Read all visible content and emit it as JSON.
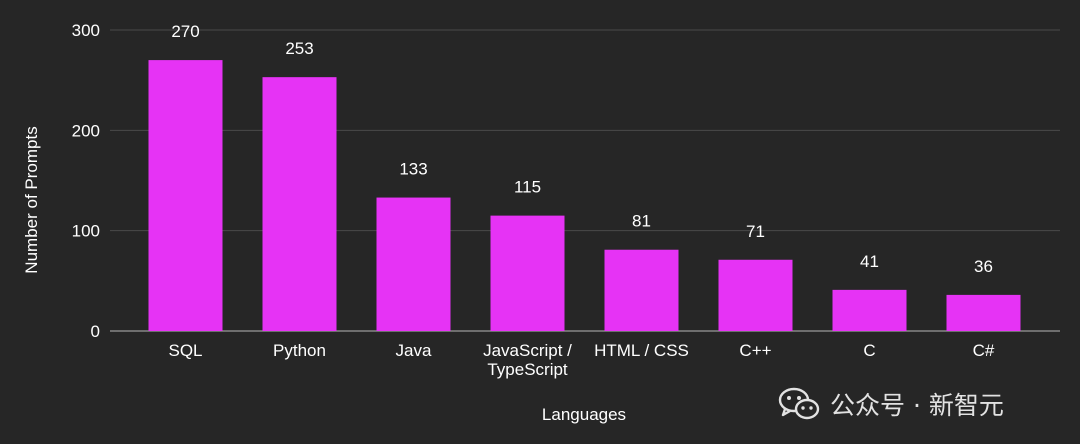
{
  "chart_data": {
    "type": "bar",
    "categories": [
      "SQL",
      "Python",
      "Java",
      "JavaScript / TypeScript",
      "HTML / CSS",
      "C++",
      "C",
      "C#"
    ],
    "category_lines": [
      [
        "SQL"
      ],
      [
        "Python"
      ],
      [
        "Java"
      ],
      [
        "JavaScript /",
        "TypeScript"
      ],
      [
        "HTML / CSS"
      ],
      [
        "C++"
      ],
      [
        "C"
      ],
      [
        "C#"
      ]
    ],
    "values": [
      270,
      253,
      133,
      115,
      81,
      71,
      41,
      36
    ],
    "data_labels": [
      "270",
      "253",
      "133",
      "115",
      "81",
      "71",
      "41",
      "36"
    ],
    "xlabel": "Languages",
    "ylabel": "Number of Prompts",
    "ylim": [
      0,
      300
    ],
    "yticks": [
      0,
      100,
      200,
      300
    ],
    "grid": true,
    "bar_color": "#e633f5",
    "background_color": "#262626",
    "text_color": "#ffffff",
    "grid_color": "#4a4a4a"
  },
  "watermark": {
    "icon": "wechat-icon",
    "text": "公众号 · 新智元"
  }
}
